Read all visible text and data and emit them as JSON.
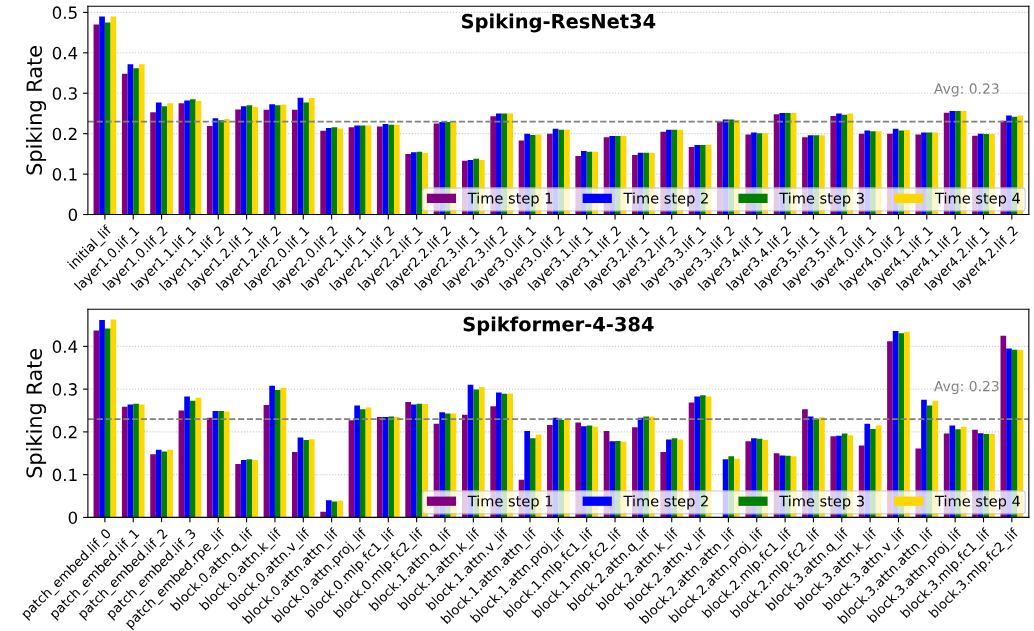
{
  "chart_data": [
    {
      "type": "bar",
      "title": "Spiking-ResNet34",
      "ylabel": "Spiking Rate",
      "categories": [
        "initial_lif",
        "layer1.0.lif_1",
        "layer1.0.lif_2",
        "layer1.1.lif_1",
        "layer1.1.lif_2",
        "layer1.2.lif_1",
        "layer1.2.lif_2",
        "layer2.0.lif_1",
        "layer2.0.lif_2",
        "layer2.1.lif_1",
        "layer2.1.lif_2",
        "layer2.2.lif_1",
        "layer2.2.lif_2",
        "layer2.3.lif_1",
        "layer2.3.lif_2",
        "layer3.0.lif_1",
        "layer3.0.lif_2",
        "layer3.1.lif_1",
        "layer3.1.lif_2",
        "layer3.2.lif_1",
        "layer3.2.lif_2",
        "layer3.3.lif_1",
        "layer3.3.lif_2",
        "layer3.4.lif_1",
        "layer3.4.lif_2",
        "layer3.5.lif_1",
        "layer3.5.lif_2",
        "layer4.0.lif_1",
        "layer4.0.lif_2",
        "layer4.1.lif_1",
        "layer4.1.lif_2",
        "layer4.2.lif_1",
        "layer4.2.lif_2"
      ],
      "series": [
        {
          "name": "Time step 1",
          "color": "#800080",
          "values": [
            0.47,
            0.348,
            0.253,
            0.275,
            0.219,
            0.26,
            0.259,
            0.259,
            0.207,
            0.216,
            0.218,
            0.15,
            0.225,
            0.133,
            0.243,
            0.183,
            0.2,
            0.145,
            0.191,
            0.147,
            0.205,
            0.167,
            0.23,
            0.198,
            0.248,
            0.191,
            0.244,
            0.2,
            0.2,
            0.198,
            0.252,
            0.195,
            0.232
          ]
        },
        {
          "name": "Time step 2",
          "color": "#0000ff",
          "values": [
            0.49,
            0.372,
            0.277,
            0.282,
            0.238,
            0.268,
            0.273,
            0.289,
            0.214,
            0.22,
            0.224,
            0.154,
            0.229,
            0.135,
            0.25,
            0.2,
            0.212,
            0.157,
            0.194,
            0.153,
            0.21,
            0.172,
            0.235,
            0.203,
            0.251,
            0.196,
            0.25,
            0.208,
            0.212,
            0.203,
            0.256,
            0.2,
            0.245
          ]
        },
        {
          "name": "Time step 3",
          "color": "#008000",
          "values": [
            0.475,
            0.362,
            0.268,
            0.285,
            0.233,
            0.27,
            0.27,
            0.277,
            0.216,
            0.22,
            0.222,
            0.155,
            0.229,
            0.138,
            0.25,
            0.197,
            0.21,
            0.155,
            0.194,
            0.153,
            0.21,
            0.172,
            0.235,
            0.201,
            0.251,
            0.196,
            0.247,
            0.206,
            0.208,
            0.203,
            0.256,
            0.199,
            0.242
          ]
        },
        {
          "name": "Time step 4",
          "color": "#ffd700",
          "values": [
            0.49,
            0.372,
            0.275,
            0.281,
            0.236,
            0.266,
            0.272,
            0.288,
            0.213,
            0.22,
            0.222,
            0.152,
            0.229,
            0.135,
            0.25,
            0.198,
            0.21,
            0.155,
            0.194,
            0.152,
            0.21,
            0.172,
            0.234,
            0.201,
            0.251,
            0.196,
            0.25,
            0.206,
            0.209,
            0.203,
            0.256,
            0.199,
            0.245
          ]
        }
      ],
      "ylim": [
        0,
        0.515
      ],
      "yticks": [
        0,
        0.1,
        0.2,
        0.3,
        0.4,
        0.5
      ],
      "grid": "y",
      "legend": "bottom right",
      "ref_lines": [
        {
          "axis": "y",
          "value": 0.23,
          "label": "Avg: 0.23",
          "color": "#808080",
          "line_style": "dashed"
        }
      ]
    },
    {
      "type": "bar",
      "title": "Spikformer-4-384",
      "ylabel": "Spiking Rate",
      "categories": [
        "patch_embed.lif_0",
        "patch_embed.lif_1",
        "patch_embed.lif_2",
        "patch_embed.lif_3",
        "patch_embed.rpe_lif",
        "block.0.attn.q_lif",
        "block.0.attn.k_lif",
        "block.0.attn.v_lif",
        "block.0.attn.attn_lif",
        "block.0.attn.proj_lif",
        "block.0.mlp.fc1_lif",
        "block.0.mlp.fc2_lif",
        "block.1.attn.q_lif",
        "block.1.attn.k_lif",
        "block.1.attn.v_lif",
        "block.1.attn.attn_lif",
        "block.1.attn.proj_lif",
        "block.1.mlp.fc1_lif",
        "block.1.mlp.fc2_lif",
        "block.2.attn.q_lif",
        "block.2.attn.k_lif",
        "block.2.attn.v_lif",
        "block.2.attn.attn_lif",
        "block.2.attn.proj_lif",
        "block.2.mlp.fc1_lif",
        "block.2.mlp.fc2_lif",
        "block.3.attn.q_lif",
        "block.3.attn.k_lif",
        "block.3.attn.v_lif",
        "block.3.attn.attn_lif",
        "block.3.attn.proj_lif",
        "block.3.mlp.fc1_lif",
        "block.3.mlp.fc2_lif"
      ],
      "series": [
        {
          "name": "Time step 1",
          "color": "#800080",
          "values": [
            0.437,
            0.259,
            0.148,
            0.25,
            0.233,
            0.125,
            0.263,
            0.153,
            0.013,
            0.227,
            0.235,
            0.27,
            0.219,
            0.24,
            0.26,
            0.088,
            0.216,
            0.222,
            0.202,
            0.211,
            0.153,
            0.269,
            null,
            0.178,
            0.15,
            0.253,
            0.19,
            0.168,
            0.412,
            0.161,
            0.196,
            0.205,
            0.425
          ]
        },
        {
          "name": "Time step 2",
          "color": "#0000ff",
          "values": [
            0.462,
            0.264,
            0.158,
            0.283,
            0.249,
            0.134,
            0.308,
            0.187,
            0.04,
            0.262,
            0.235,
            0.264,
            0.246,
            0.31,
            0.292,
            0.202,
            0.233,
            0.213,
            0.178,
            0.233,
            0.182,
            0.283,
            0.136,
            0.185,
            0.145,
            0.236,
            0.191,
            0.219,
            0.436,
            0.275,
            0.215,
            0.197,
            0.395
          ]
        },
        {
          "name": "Time step 3",
          "color": "#008000",
          "values": [
            0.442,
            0.266,
            0.154,
            0.273,
            0.249,
            0.136,
            0.298,
            0.181,
            0.037,
            0.253,
            0.236,
            0.266,
            0.243,
            0.299,
            0.289,
            0.185,
            0.228,
            0.215,
            0.179,
            0.236,
            0.185,
            0.286,
            0.143,
            0.184,
            0.144,
            0.231,
            0.196,
            0.207,
            0.431,
            0.262,
            0.206,
            0.195,
            0.392
          ]
        },
        {
          "name": "Time step 4",
          "color": "#ffd700",
          "values": [
            0.463,
            0.264,
            0.158,
            0.28,
            0.248,
            0.134,
            0.303,
            0.183,
            0.039,
            0.257,
            0.235,
            0.265,
            0.243,
            0.305,
            0.29,
            0.194,
            0.23,
            0.212,
            0.177,
            0.236,
            0.182,
            0.283,
            0.137,
            0.181,
            0.143,
            0.234,
            0.192,
            0.215,
            0.434,
            0.273,
            0.212,
            0.195,
            0.392
          ]
        }
      ],
      "ylim": [
        0,
        0.487
      ],
      "yticks": [
        0,
        0.1,
        0.2,
        0.3,
        0.4
      ],
      "grid": "y",
      "legend": "bottom right",
      "ref_lines": [
        {
          "axis": "y",
          "value": 0.23,
          "label": "Avg: 0.23",
          "color": "#808080",
          "line_style": "dashed"
        }
      ]
    }
  ]
}
